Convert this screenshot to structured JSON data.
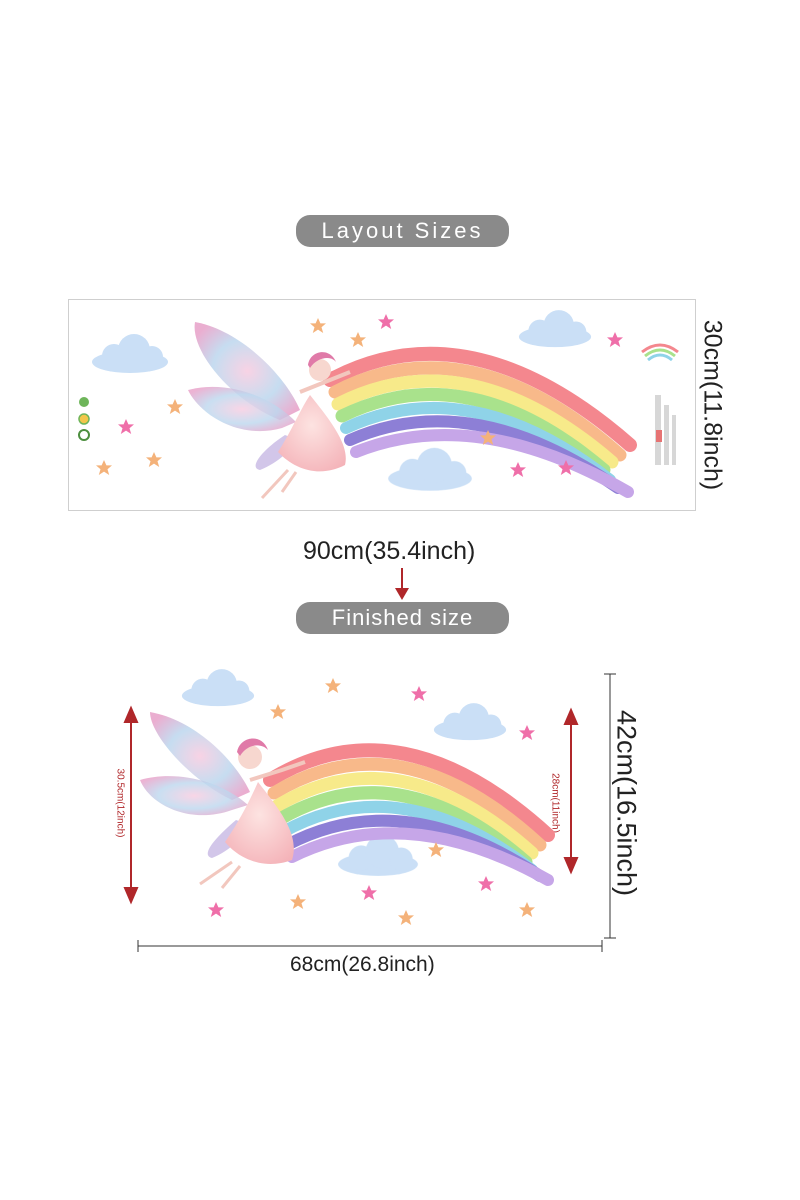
{
  "labels": {
    "layout_pill": "Layout Sizes",
    "finished_pill": "Finished size"
  },
  "layout": {
    "width": "90cm(35.4inch)",
    "height": "30cm(11.8inch)"
  },
  "finished": {
    "width": "68cm(26.8inch)",
    "height": "42cm(16.5inch)",
    "fairy_height": "30.5cm(12inch)",
    "rainbow_height": "28cm(11inch)"
  },
  "colors": {
    "pill": "#8a8a8a",
    "arrow": "#b0272a",
    "rainbow": [
      "#f4878e",
      "#f8b98a",
      "#f7ea8a",
      "#a9e28c",
      "#8fd3e8",
      "#8d7fd6",
      "#c6a6e8"
    ],
    "cloud": "#bcd8f3",
    "star_orange": "#f4b27a",
    "star_pink": "#ef6fa9"
  }
}
